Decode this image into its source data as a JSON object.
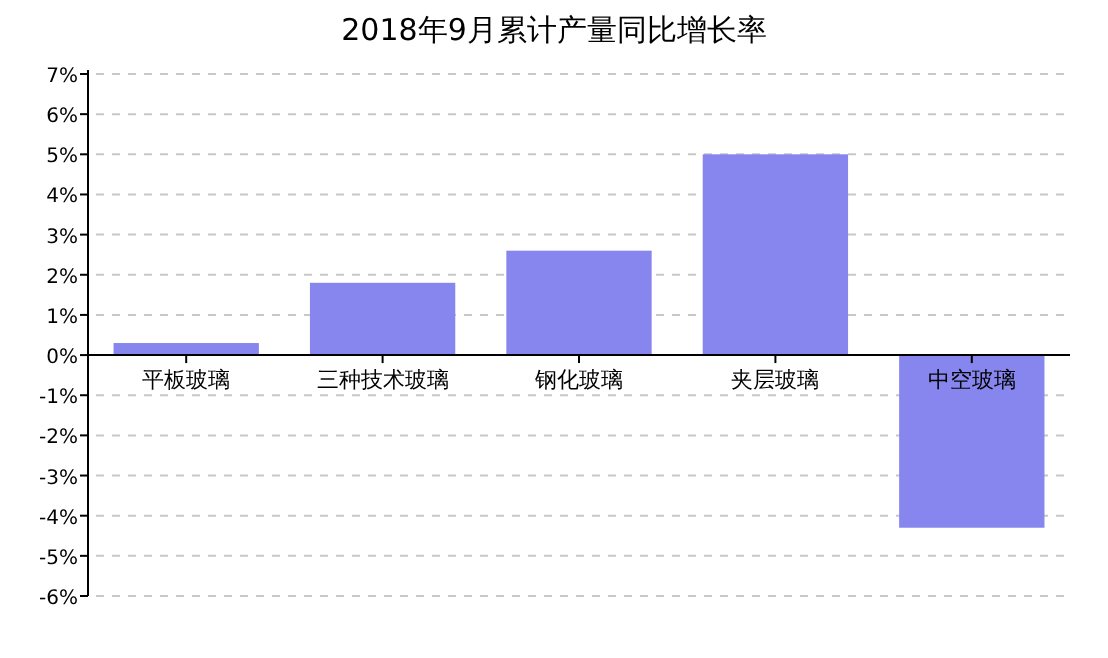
{
  "chart_data": {
    "type": "bar",
    "title": "2018年9月累计产量同比增长率",
    "categories": [
      "平板玻璃",
      "三种技术玻璃",
      "钢化玻璃",
      "夹层玻璃",
      "中空玻璃"
    ],
    "values": [
      0.3,
      1.8,
      2.6,
      5.0,
      -4.3
    ],
    "color": "#8686ee",
    "ylim": [
      -6,
      7
    ],
    "yticks": [
      {
        "value": -6,
        "label": "-6%"
      },
      {
        "value": -5,
        "label": "-5%"
      },
      {
        "value": -4,
        "label": "-4%"
      },
      {
        "value": -3,
        "label": "-3%"
      },
      {
        "value": -2,
        "label": "-2%"
      },
      {
        "value": -1,
        "label": "-1%"
      },
      {
        "value": 0,
        "label": "0%"
      },
      {
        "value": 1,
        "label": "1%"
      },
      {
        "value": 2,
        "label": "2%"
      },
      {
        "value": 3,
        "label": "3%"
      },
      {
        "value": 4,
        "label": "4%"
      },
      {
        "value": 5,
        "label": "5%"
      },
      {
        "value": 6,
        "label": "6%"
      },
      {
        "value": 7,
        "label": "7%"
      }
    ],
    "grid": "y"
  }
}
